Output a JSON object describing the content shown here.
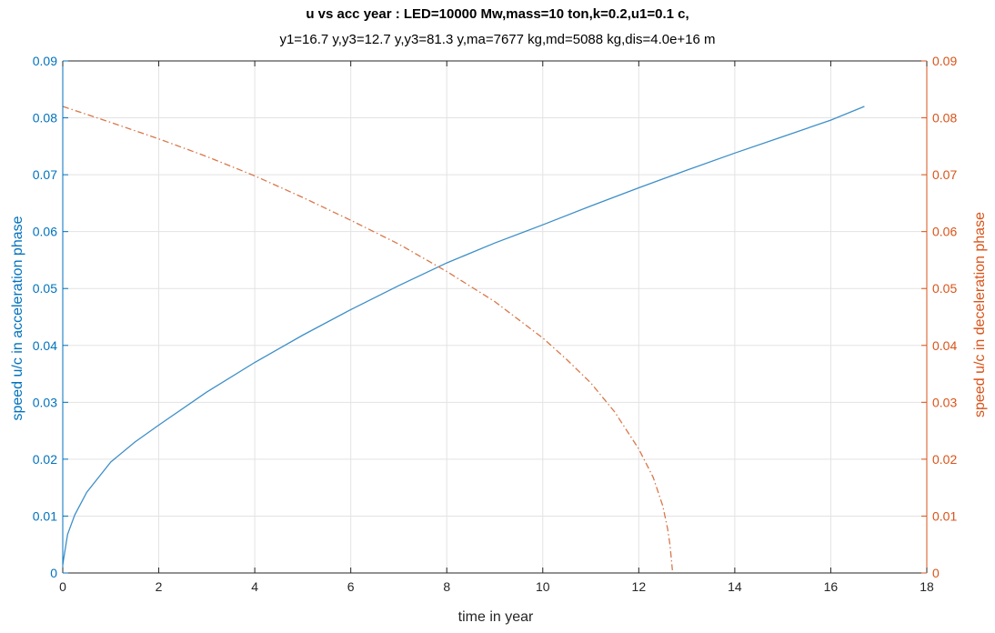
{
  "chart_data": {
    "type": "line",
    "title": "u vs acc year : LED=10000 Mw,mass=10 ton,k=0.2,u1=0.1 c,",
    "subtitle": "y1=16.7 y,y3=12.7 y,y3=81.3 y,ma=7677 kg,md=5088 kg,dis=4.0e+16 m",
    "xlabel": "time in year",
    "ylabel_left": "speed u/c in acceleration phase",
    "ylabel_right": "speed u/c in deceleration phase",
    "xlim": [
      0,
      18
    ],
    "ylim_left": [
      0,
      0.09
    ],
    "ylim_right": [
      0,
      0.09
    ],
    "x_ticks": [
      "0",
      "2",
      "4",
      "6",
      "8",
      "10",
      "12",
      "14",
      "16",
      "18"
    ],
    "y_ticks_left": [
      "0",
      "0.01",
      "0.02",
      "0.03",
      "0.04",
      "0.05",
      "0.06",
      "0.07",
      "0.08",
      "0.09"
    ],
    "y_ticks_right": [
      "0",
      "0.01",
      "0.02",
      "0.03",
      "0.04",
      "0.05",
      "0.06",
      "0.07",
      "0.08",
      "0.09"
    ],
    "grid": true,
    "colors": {
      "left_axis": "#0072bd",
      "right_axis": "#d95319",
      "acceleration_line": "#3d8fc8",
      "deceleration_line": "#d9774a",
      "grid": "#e3e3e3",
      "frame": "#262626"
    },
    "series": [
      {
        "axis": "left",
        "line_style": "solid",
        "x": [
          0,
          0.1,
          0.25,
          0.5,
          1,
          1.5,
          2,
          3,
          4,
          5,
          6,
          7,
          8,
          9,
          10,
          11,
          12,
          13,
          14,
          15,
          16,
          16.7
        ],
        "y": [
          0.0015,
          0.0068,
          0.0102,
          0.0142,
          0.0195,
          0.023,
          0.026,
          0.0318,
          0.037,
          0.0418,
          0.0463,
          0.0505,
          0.0545,
          0.058,
          0.0612,
          0.0645,
          0.0677,
          0.0708,
          0.0738,
          0.0767,
          0.0796,
          0.082
        ]
      },
      {
        "axis": "right",
        "line_style": "dash-dot",
        "x": [
          0,
          1,
          2,
          3,
          4,
          5,
          6,
          7,
          8,
          9,
          10,
          10.5,
          11,
          11.5,
          12,
          12.3,
          12.5,
          12.6,
          12.65,
          12.7
        ],
        "y": [
          0.082,
          0.0792,
          0.0763,
          0.0732,
          0.0698,
          0.066,
          0.062,
          0.0578,
          0.053,
          0.0477,
          0.0413,
          0.0375,
          0.0334,
          0.0283,
          0.0218,
          0.0168,
          0.0118,
          0.0078,
          0.005,
          0.0005
        ]
      }
    ]
  }
}
